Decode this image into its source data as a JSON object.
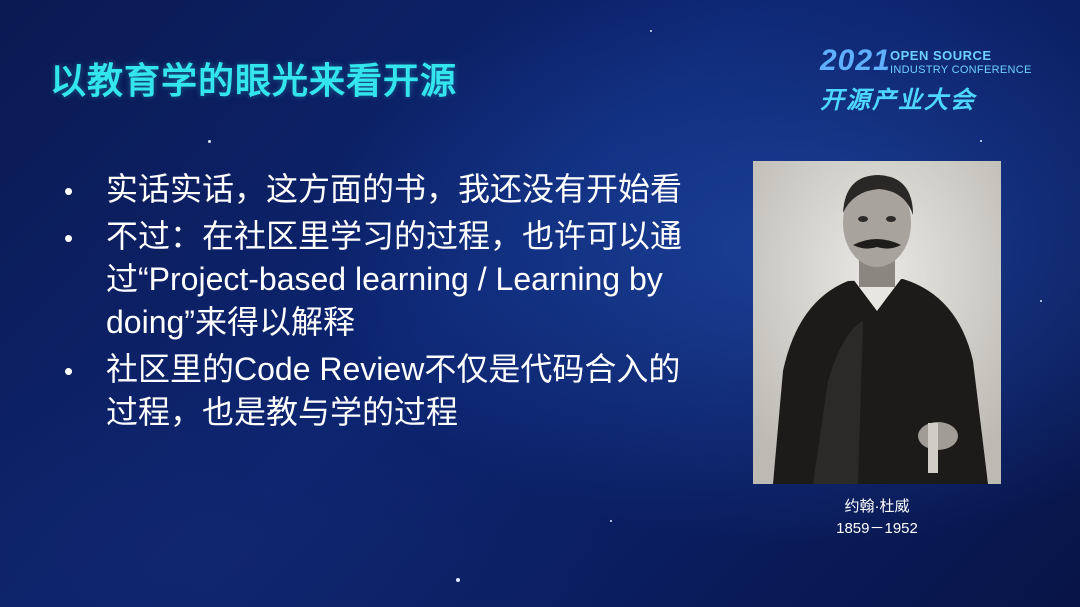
{
  "title": "以教育学的眼光来看开源",
  "logo": {
    "year": "2021",
    "line1": "OPEN SOURCE",
    "line2": "INDUSTRY CONFERENCE",
    "cn": "开源产业大会"
  },
  "bullets": [
    {
      "marker": "•",
      "text": "实话实话，这方面的书，我还没有开始看"
    },
    {
      "marker": "•",
      "text": "不过：在社区里学习的过程，也许可以通过“Project-based learning / Learning by doing”来得以解释"
    },
    {
      "marker": "•",
      "text": "社区里的Code Review不仅是代码合入的过程，也是教与学的过程"
    }
  ],
  "portrait": {
    "name": "约翰·杜威",
    "years": "1859－1952"
  },
  "colors": {
    "title": "#33e6ee",
    "background": "#0c2470",
    "logo": "#5fb0ff"
  }
}
